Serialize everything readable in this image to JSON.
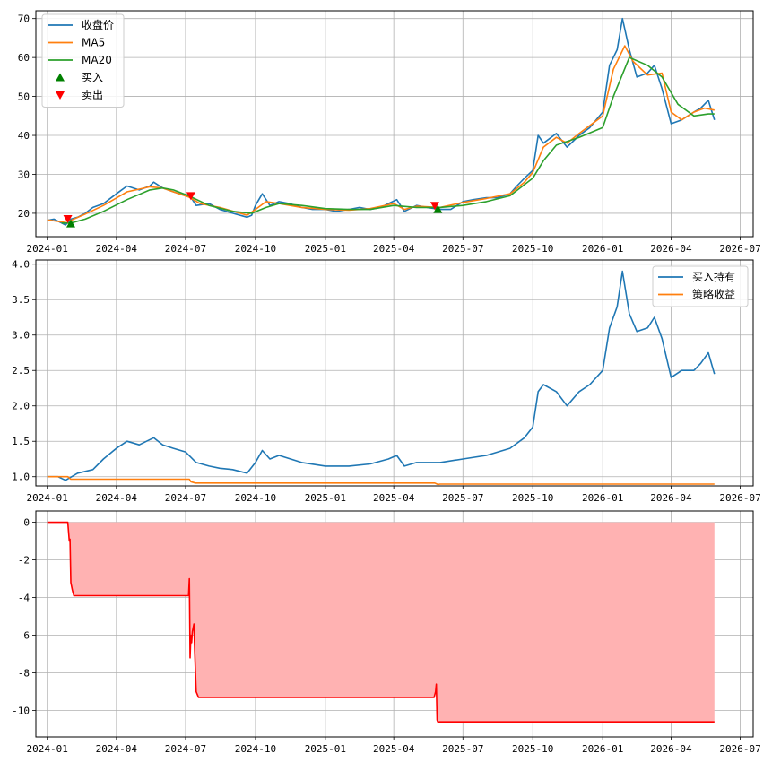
{
  "chart_data": [
    {
      "type": "line",
      "title": "",
      "xlabel": "",
      "ylabel": "",
      "xlim": [
        "2023-12-17",
        "2026-07-18"
      ],
      "ylim": [
        14,
        72
      ],
      "grid": true,
      "legend_position": "top-left",
      "x_ticks": [
        "2024-01",
        "2024-04",
        "2024-07",
        "2024-10",
        "2025-01",
        "2025-04",
        "2025-07",
        "2025-10",
        "2026-01",
        "2026-04",
        "2026-07"
      ],
      "y_ticks": [
        20,
        30,
        40,
        50,
        60,
        70
      ],
      "legend": [
        "收盘价",
        "MA5",
        "MA20",
        "买入",
        "卖出"
      ],
      "series": [
        {
          "name": "收盘价",
          "color": "#1f77b4",
          "x": [
            "2024-01-01",
            "2024-01-10",
            "2024-01-20",
            "2024-01-25",
            "2024-02-01",
            "2024-02-10",
            "2024-02-20",
            "2024-03-01",
            "2024-03-15",
            "2024-04-01",
            "2024-04-15",
            "2024-05-01",
            "2024-05-15",
            "2024-05-20",
            "2024-06-01",
            "2024-06-15",
            "2024-07-01",
            "2024-07-05",
            "2024-07-15",
            "2024-08-01",
            "2024-08-15",
            "2024-09-01",
            "2024-09-20",
            "2024-09-26",
            "2024-10-01",
            "2024-10-10",
            "2024-10-20",
            "2024-11-01",
            "2024-11-15",
            "2024-12-01",
            "2024-12-15",
            "2025-01-01",
            "2025-01-15",
            "2025-02-01",
            "2025-02-15",
            "2025-03-01",
            "2025-03-15",
            "2025-03-25",
            "2025-04-05",
            "2025-04-15",
            "2025-05-01",
            "2025-05-15",
            "2025-06-01",
            "2025-06-15",
            "2025-07-01",
            "2025-07-15",
            "2025-08-01",
            "2025-08-15",
            "2025-09-01",
            "2025-09-10",
            "2025-09-20",
            "2025-10-01",
            "2025-10-08",
            "2025-10-15",
            "2025-11-01",
            "2025-11-15",
            "2025-12-01",
            "2025-12-15",
            "2026-01-01",
            "2026-01-10",
            "2026-01-20",
            "2026-01-27",
            "2026-02-05",
            "2026-02-15",
            "2026-03-01",
            "2026-03-10",
            "2026-03-20",
            "2026-04-01",
            "2026-04-15",
            "2026-05-01",
            "2026-05-10",
            "2026-05-20",
            "2026-05-28"
          ],
          "values": [
            18.2,
            18.5,
            17.5,
            17.0,
            18.5,
            19.0,
            20.0,
            21.5,
            22.5,
            25.0,
            27.0,
            26.0,
            27.0,
            28.0,
            26.5,
            25.5,
            24.5,
            25.0,
            22.0,
            22.5,
            21.0,
            20.0,
            19.0,
            19.5,
            22.0,
            25.0,
            22.0,
            23.0,
            22.5,
            21.5,
            21.0,
            21.0,
            20.5,
            21.0,
            21.5,
            21.0,
            21.5,
            22.5,
            23.5,
            20.5,
            22.0,
            21.5,
            21.0,
            21.0,
            23.0,
            23.5,
            24.0,
            24.0,
            25.0,
            27.0,
            29.0,
            31.0,
            40.0,
            38.0,
            40.5,
            37.0,
            40.0,
            42.0,
            46.0,
            58.0,
            62.0,
            70.0,
            62.0,
            55.0,
            56.0,
            58.0,
            52.0,
            43.0,
            44.0,
            46.0,
            47.0,
            49.0,
            44.0
          ]
        },
        {
          "name": "MA5",
          "color": "#ff7f0e",
          "x": [
            "2024-01-01",
            "2024-01-20",
            "2024-02-01",
            "2024-02-20",
            "2024-03-15",
            "2024-04-15",
            "2024-05-15",
            "2024-06-01",
            "2024-06-15",
            "2024-07-05",
            "2024-07-20",
            "2024-08-15",
            "2024-09-20",
            "2024-10-01",
            "2024-10-15",
            "2024-11-01",
            "2024-12-01",
            "2025-01-01",
            "2025-02-01",
            "2025-03-01",
            "2025-04-01",
            "2025-04-15",
            "2025-05-01",
            "2025-06-01",
            "2025-07-01",
            "2025-08-01",
            "2025-09-01",
            "2025-09-20",
            "2025-10-01",
            "2025-10-15",
            "2025-11-01",
            "2025-11-15",
            "2025-12-01",
            "2026-01-01",
            "2026-01-15",
            "2026-01-30",
            "2026-02-10",
            "2026-03-01",
            "2026-03-20",
            "2026-04-01",
            "2026-04-15",
            "2026-05-01",
            "2026-05-15",
            "2026-05-28"
          ],
          "values": [
            18.3,
            17.8,
            18.2,
            19.8,
            22.0,
            25.5,
            26.8,
            26.5,
            25.5,
            24.2,
            22.5,
            21.5,
            19.5,
            21.0,
            23.0,
            22.5,
            21.5,
            21.0,
            20.8,
            21.2,
            22.5,
            21.0,
            21.8,
            21.5,
            22.8,
            23.8,
            25.0,
            28.0,
            30.5,
            37.0,
            39.5,
            38.0,
            40.5,
            45.0,
            57.0,
            63.0,
            59.0,
            55.5,
            56.0,
            46.0,
            44.0,
            46.0,
            47.0,
            46.5
          ]
        },
        {
          "name": "MA20",
          "color": "#2ca02c",
          "x": [
            "2024-01-20",
            "2024-02-01",
            "2024-02-20",
            "2024-03-15",
            "2024-04-15",
            "2024-05-15",
            "2024-06-01",
            "2024-06-15",
            "2024-07-05",
            "2024-08-01",
            "2024-09-01",
            "2024-09-26",
            "2024-10-15",
            "2024-11-01",
            "2024-12-01",
            "2025-01-01",
            "2025-02-01",
            "2025-03-01",
            "2025-04-01",
            "2025-05-01",
            "2025-06-01",
            "2025-07-01",
            "2025-08-01",
            "2025-09-01",
            "2025-10-01",
            "2025-10-15",
            "2025-11-01",
            "2025-12-01",
            "2026-01-01",
            "2026-01-15",
            "2026-02-05",
            "2026-03-01",
            "2026-03-20",
            "2026-04-10",
            "2026-05-01",
            "2026-05-20",
            "2026-05-28"
          ],
          "values": [
            17.5,
            17.5,
            18.5,
            20.5,
            23.5,
            26.0,
            26.5,
            26.0,
            24.5,
            22.0,
            20.5,
            20.0,
            21.5,
            22.5,
            22.0,
            21.2,
            21.0,
            21.0,
            22.0,
            21.5,
            21.5,
            22.0,
            23.0,
            24.5,
            29.0,
            33.5,
            37.5,
            39.5,
            42.0,
            50.0,
            60.0,
            58.0,
            55.0,
            48.0,
            45.0,
            45.5,
            45.5
          ]
        }
      ],
      "markers": [
        {
          "name": "买入",
          "symbol": "triangle-up",
          "color": "#008000",
          "x": [
            "2024-02-01",
            "2025-05-29"
          ],
          "values": [
            17.3,
            21.0
          ]
        },
        {
          "name": "卖出",
          "symbol": "triangle-down",
          "color": "#ff0000",
          "x": [
            "2024-01-28",
            "2024-07-08",
            "2025-05-25"
          ],
          "values": [
            18.6,
            24.5,
            22.0
          ]
        }
      ]
    },
    {
      "type": "line",
      "title": "",
      "xlabel": "",
      "ylabel": "",
      "xlim": [
        "2023-12-17",
        "2026-07-18"
      ],
      "ylim": [
        0.87,
        4.06
      ],
      "grid": true,
      "legend_position": "top-right",
      "x_ticks": [
        "2024-01",
        "2024-04",
        "2024-07",
        "2024-10",
        "2025-01",
        "2025-04",
        "2025-07",
        "2025-10",
        "2026-01",
        "2026-04",
        "2026-07"
      ],
      "y_ticks": [
        1.0,
        1.5,
        2.0,
        2.5,
        3.0,
        3.5,
        4.0
      ],
      "legend": [
        "买入持有",
        "策略收益"
      ],
      "series": [
        {
          "name": "买入持有",
          "color": "#1f77b4",
          "x": [
            "2024-01-01",
            "2024-01-15",
            "2024-01-25",
            "2024-02-10",
            "2024-03-01",
            "2024-03-15",
            "2024-04-01",
            "2024-04-15",
            "2024-05-01",
            "2024-05-20",
            "2024-06-01",
            "2024-06-15",
            "2024-07-01",
            "2024-07-15",
            "2024-08-01",
            "2024-08-15",
            "2024-09-01",
            "2024-09-20",
            "2024-10-01",
            "2024-10-10",
            "2024-10-20",
            "2024-11-01",
            "2024-12-01",
            "2025-01-01",
            "2025-02-01",
            "2025-03-01",
            "2025-03-25",
            "2025-04-05",
            "2025-04-15",
            "2025-05-01",
            "2025-06-01",
            "2025-07-01",
            "2025-08-01",
            "2025-09-01",
            "2025-09-20",
            "2025-10-01",
            "2025-10-08",
            "2025-10-15",
            "2025-11-01",
            "2025-11-15",
            "2025-12-01",
            "2025-12-15",
            "2026-01-01",
            "2026-01-10",
            "2026-01-20",
            "2026-01-27",
            "2026-02-05",
            "2026-02-15",
            "2026-03-01",
            "2026-03-10",
            "2026-03-20",
            "2026-04-01",
            "2026-04-15",
            "2026-05-01",
            "2026-05-10",
            "2026-05-20",
            "2026-05-28"
          ],
          "values": [
            1.0,
            1.0,
            0.95,
            1.05,
            1.1,
            1.25,
            1.4,
            1.5,
            1.45,
            1.55,
            1.45,
            1.4,
            1.35,
            1.2,
            1.15,
            1.12,
            1.1,
            1.05,
            1.2,
            1.37,
            1.25,
            1.3,
            1.2,
            1.15,
            1.15,
            1.18,
            1.25,
            1.3,
            1.15,
            1.2,
            1.2,
            1.25,
            1.3,
            1.4,
            1.55,
            1.7,
            2.2,
            2.3,
            2.2,
            2.0,
            2.2,
            2.3,
            2.5,
            3.1,
            3.4,
            3.9,
            3.3,
            3.05,
            3.1,
            3.25,
            2.95,
            2.4,
            2.5,
            2.5,
            2.6,
            2.75,
            2.45
          ]
        },
        {
          "name": "策略收益",
          "color": "#ff7f0e",
          "x": [
            "2024-01-01",
            "2024-01-28",
            "2024-02-01",
            "2024-07-06",
            "2024-07-08",
            "2024-07-14",
            "2025-05-25",
            "2025-05-29",
            "2025-06-01",
            "2026-05-28"
          ],
          "values": [
            1.0,
            1.0,
            0.965,
            0.965,
            0.93,
            0.91,
            0.91,
            0.89,
            0.895,
            0.895
          ]
        }
      ]
    },
    {
      "type": "area",
      "title": "",
      "xlabel": "",
      "ylabel": "",
      "xlim": [
        "2023-12-17",
        "2026-07-18"
      ],
      "ylim": [
        -11.4,
        0.6
      ],
      "grid": true,
      "x_ticks": [
        "2024-01",
        "2024-04",
        "2024-07",
        "2024-10",
        "2025-01",
        "2025-04",
        "2025-07",
        "2025-10",
        "2026-01",
        "2026-04",
        "2026-07"
      ],
      "y_ticks": [
        0,
        -2,
        -4,
        -6,
        -8,
        -10
      ],
      "series": [
        {
          "color": "#ff0000",
          "fill": "#ffb2b2",
          "x": [
            "2024-01-01",
            "2024-01-28",
            "2024-01-30",
            "2024-01-31",
            "2024-02-01",
            "2024-02-03",
            "2024-02-05",
            "2024-07-05",
            "2024-07-06",
            "2024-07-07",
            "2024-07-08",
            "2024-07-09",
            "2024-07-10",
            "2024-07-12",
            "2024-07-13",
            "2024-07-15",
            "2024-07-18",
            "2025-05-24",
            "2025-05-26",
            "2025-05-27",
            "2025-05-28",
            "2025-05-29",
            "2026-05-28"
          ],
          "values": [
            0,
            0,
            -1.0,
            -0.9,
            -3.2,
            -3.6,
            -3.9,
            -3.9,
            -3.0,
            -7.2,
            -6.0,
            -6.4,
            -5.8,
            -5.4,
            -6.8,
            -9.0,
            -9.3,
            -9.3,
            -9.0,
            -8.6,
            -10.5,
            -10.6,
            -10.6
          ]
        }
      ]
    }
  ]
}
